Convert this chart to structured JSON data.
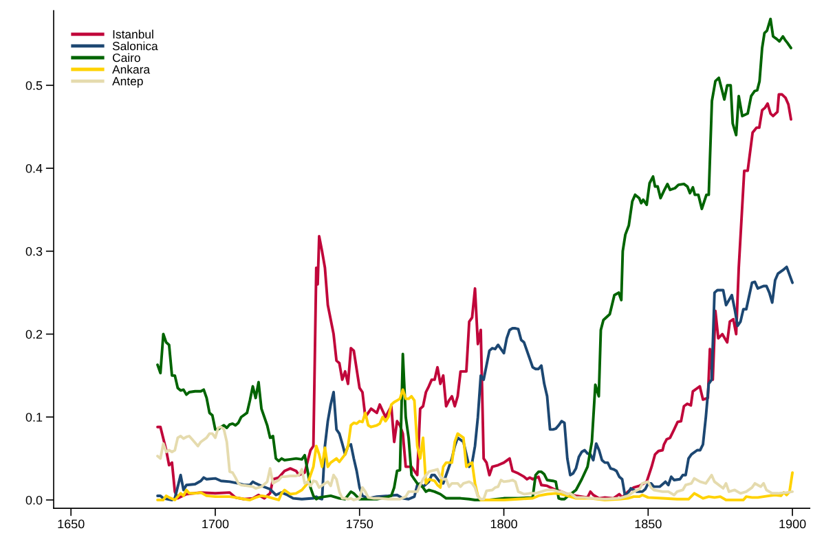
{
  "chart_data": {
    "type": "line",
    "xlim": [
      1644,
      1906
    ],
    "ylim": [
      -0.01,
      0.59
    ],
    "xticks": [
      1650,
      1700,
      1750,
      1800,
      1850,
      1900
    ],
    "yticks": [
      {
        "value": 0,
        "label": "0.0"
      },
      0.1,
      0.2,
      0.3,
      0.4,
      0.5
    ],
    "legend": "top left",
    "grid": false,
    "line_style": "solid",
    "marker": "none",
    "series": [
      {
        "name": "Istanbul",
        "color": "#c0063a",
        "x": [
          1680,
          1681,
          1683,
          1684,
          1685,
          1686,
          1687,
          1690,
          1695,
          1700,
          1705,
          1707,
          1710,
          1713,
          1715,
          1717,
          1719,
          1720,
          1722,
          1724,
          1726,
          1728,
          1729,
          1731,
          1733,
          1734,
          1735,
          1735.5,
          1736,
          1737,
          1738,
          1739,
          1741,
          1742,
          1743,
          1744,
          1745,
          1746,
          1747,
          1748,
          1750,
          1751,
          1752,
          1753,
          1754,
          1756,
          1757,
          1759,
          1761,
          1762,
          1763,
          1764,
          1765,
          1766,
          1768,
          1770,
          1771,
          1772,
          1773,
          1774,
          1775,
          1776,
          1777,
          1778,
          1779,
          1780,
          1781,
          1782,
          1783,
          1784,
          1785,
          1787,
          1788,
          1789,
          1790,
          1791,
          1792,
          1793,
          1794,
          1795,
          1796,
          1798,
          1800,
          1802,
          1803,
          1805,
          1807,
          1808,
          1809,
          1810,
          1812,
          1813,
          1815,
          1818,
          1820,
          1822,
          1825,
          1827,
          1829,
          1830,
          1831,
          1833,
          1835,
          1838,
          1840,
          1841,
          1843,
          1845,
          1847,
          1849.5,
          1851.2,
          1852.4,
          1853.6,
          1855,
          1855.5,
          1856.4,
          1857.6,
          1859,
          1860.2,
          1861.4,
          1862.4,
          1863.6,
          1864.8,
          1865.5,
          1867.9,
          1869,
          1870.7,
          1871.4,
          1872.4,
          1873.3,
          1874.3,
          1875.7,
          1877.4,
          1878.3,
          1879.5,
          1880.5,
          1881.4,
          1883.3,
          1884.5,
          1886.2,
          1887.6,
          1888.5,
          1889.5,
          1890.5,
          1891.4,
          1892.4,
          1893.3,
          1894.8,
          1895.3,
          1896.4,
          1897.6,
          1898.6,
          1899.5
        ],
        "values": [
          0.088,
          0.088,
          0.06,
          0.042,
          0.045,
          0.01,
          0.002,
          0.007,
          0.009,
          0.008,
          0.009,
          0.003,
          0.001,
          0.002,
          0.006,
          0.002,
          0.008,
          0.025,
          0.027,
          0.035,
          0.038,
          0.035,
          0.03,
          0.033,
          0.06,
          0.065,
          0.28,
          0.26,
          0.318,
          0.3,
          0.28,
          0.235,
          0.2,
          0.168,
          0.165,
          0.145,
          0.155,
          0.14,
          0.183,
          0.18,
          0.135,
          0.13,
          0.1,
          0.105,
          0.11,
          0.105,
          0.115,
          0.1,
          0.113,
          0.07,
          0.095,
          0.09,
          0.08,
          0.04,
          0.04,
          0.03,
          0.11,
          0.113,
          0.13,
          0.137,
          0.145,
          0.145,
          0.16,
          0.14,
          0.15,
          0.113,
          0.12,
          0.125,
          0.113,
          0.125,
          0.155,
          0.155,
          0.215,
          0.22,
          0.255,
          0.188,
          0.205,
          0.05,
          0.045,
          0.03,
          0.04,
          0.042,
          0.045,
          0.05,
          0.035,
          0.032,
          0.028,
          0.025,
          0.027,
          0.025,
          0.028,
          0.018,
          0.017,
          0.012,
          0.01,
          0.007,
          0.005,
          0.004,
          0.003,
          0.01,
          0.006,
          0.002,
          0.003,
          0.002,
          0.007,
          0.003,
          0.01,
          0.015,
          0.017,
          0.022,
          0.04,
          0.055,
          0.059,
          0.06,
          0.067,
          0.073,
          0.075,
          0.085,
          0.094,
          0.095,
          0.113,
          0.116,
          0.114,
          0.131,
          0.137,
          0.121,
          0.123,
          0.182,
          0.145,
          0.228,
          0.195,
          0.2,
          0.19,
          0.215,
          0.218,
          0.2,
          0.28,
          0.397,
          0.397,
          0.443,
          0.449,
          0.449,
          0.47,
          0.473,
          0.478,
          0.466,
          0.463,
          0.468,
          0.489,
          0.489,
          0.485,
          0.477,
          0.459
        ]
      },
      {
        "name": "Salonica",
        "color": "#1c4772",
        "x": [
          1680,
          1681,
          1682,
          1685,
          1686,
          1688,
          1689,
          1690,
          1693,
          1695,
          1696,
          1697,
          1700,
          1702,
          1705,
          1708,
          1710,
          1712,
          1713,
          1714,
          1716,
          1719,
          1721,
          1723,
          1725,
          1727,
          1730,
          1734,
          1735,
          1736,
          1737,
          1738,
          1739,
          1740,
          1741,
          1742,
          1743,
          1744,
          1745,
          1746,
          1747,
          1748,
          1749,
          1750,
          1751,
          1753,
          1756,
          1760,
          1763,
          1765,
          1767,
          1769,
          1770,
          1771,
          1772,
          1774,
          1775,
          1776,
          1778,
          1779,
          1780,
          1782,
          1783,
          1784,
          1786,
          1787,
          1788,
          1789,
          1790,
          1791,
          1792,
          1793,
          1795,
          1796,
          1797,
          1798,
          1800,
          1801,
          1802,
          1803,
          1804,
          1805,
          1806,
          1807,
          1808,
          1809,
          1810,
          1811,
          1812,
          1813,
          1814,
          1815,
          1816,
          1817,
          1818,
          1819,
          1820,
          1821,
          1822,
          1823,
          1824,
          1825,
          1826,
          1827,
          1828,
          1829,
          1830,
          1831,
          1832,
          1833,
          1834,
          1835,
          1836,
          1837,
          1838,
          1839,
          1840,
          1841,
          1842,
          1843,
          1844,
          1845,
          1846,
          1848,
          1849,
          1850,
          1851,
          1852,
          1854,
          1856,
          1857,
          1858,
          1859,
          1861,
          1862,
          1863,
          1864,
          1865,
          1867,
          1868,
          1869,
          1870,
          1871,
          1872,
          1873,
          1874,
          1876,
          1877,
          1879,
          1880,
          1881,
          1882,
          1883,
          1884,
          1886,
          1887,
          1888,
          1890,
          1891,
          1892,
          1893,
          1894,
          1895,
          1897,
          1898,
          1900
        ],
        "values": [
          0.005,
          0.005,
          0.002,
          0.0,
          0.002,
          0.03,
          0.012,
          0.018,
          0.019,
          0.023,
          0.027,
          0.025,
          0.026,
          0.023,
          0.022,
          0.02,
          0.018,
          0.018,
          0.022,
          0.02,
          0.017,
          0.013,
          0.006,
          0.009,
          0.006,
          0.002,
          0.001,
          0.002,
          0.004,
          0.002,
          0.001,
          0.065,
          0.095,
          0.115,
          0.13,
          0.085,
          0.08,
          0.068,
          0.055,
          0.065,
          0.067,
          0.05,
          0.035,
          0.015,
          0.005,
          0.002,
          0.004,
          0.005,
          0.006,
          0.002,
          0.001,
          0.004,
          0.018,
          0.02,
          0.016,
          0.022,
          0.03,
          0.03,
          0.021,
          0.02,
          0.03,
          0.05,
          0.065,
          0.075,
          0.07,
          0.055,
          0.04,
          0.045,
          0.065,
          0.1,
          0.15,
          0.145,
          0.18,
          0.183,
          0.182,
          0.187,
          0.177,
          0.195,
          0.205,
          0.207,
          0.207,
          0.206,
          0.193,
          0.19,
          0.18,
          0.17,
          0.16,
          0.158,
          0.158,
          0.162,
          0.14,
          0.125,
          0.085,
          0.085,
          0.086,
          0.09,
          0.095,
          0.093,
          0.05,
          0.03,
          0.032,
          0.038,
          0.052,
          0.058,
          0.06,
          0.056,
          0.055,
          0.048,
          0.068,
          0.06,
          0.048,
          0.045,
          0.045,
          0.038,
          0.037,
          0.035,
          0.028,
          0.025,
          0.005,
          0.008,
          0.014,
          0.012,
          0.01,
          0.01,
          0.013,
          0.02,
          0.02,
          0.016,
          0.016,
          0.022,
          0.018,
          0.028,
          0.024,
          0.025,
          0.03,
          0.03,
          0.05,
          0.055,
          0.06,
          0.06,
          0.067,
          0.1,
          0.14,
          0.145,
          0.25,
          0.253,
          0.253,
          0.235,
          0.247,
          0.23,
          0.21,
          0.215,
          0.23,
          0.23,
          0.262,
          0.263,
          0.255,
          0.258,
          0.258,
          0.25,
          0.238,
          0.265,
          0.273,
          0.278,
          0.281,
          0.262
        ]
      },
      {
        "name": "Cairo",
        "color": "#006400",
        "x": [
          1680,
          1681,
          1682,
          1683,
          1684,
          1685,
          1686,
          1687,
          1688,
          1689,
          1690,
          1691,
          1693,
          1695,
          1696,
          1697,
          1698,
          1699,
          1700,
          1701,
          1702,
          1703,
          1704,
          1705,
          1706,
          1707,
          1708,
          1709,
          1711,
          1712,
          1713,
          1714,
          1715,
          1716,
          1718,
          1719,
          1720,
          1721,
          1722,
          1723,
          1724,
          1726,
          1728,
          1730,
          1731,
          1732,
          1733,
          1734,
          1735,
          1736,
          1738,
          1740,
          1741,
          1743,
          1745,
          1747,
          1748,
          1750,
          1753,
          1756,
          1759,
          1761,
          1762,
          1763,
          1764,
          1765,
          1766,
          1767,
          1768,
          1769,
          1770,
          1771,
          1772,
          1773,
          1774,
          1776,
          1778,
          1780,
          1782,
          1785,
          1788,
          1790,
          1793,
          1795,
          1800,
          1805,
          1810,
          1811,
          1812,
          1813,
          1814,
          1815,
          1817,
          1818,
          1819,
          1820,
          1821,
          1822,
          1825,
          1827,
          1829,
          1830.5,
          1831.7,
          1832.9,
          1833.6,
          1834.5,
          1836.7,
          1838.3,
          1839.8,
          1840.7,
          1841.2,
          1842.1,
          1843.3,
          1844.5,
          1845.5,
          1846.9,
          1847.6,
          1848.3,
          1849.5,
          1850.5,
          1851.7,
          1852.4,
          1853.3,
          1854.3,
          1855.5,
          1856.7,
          1857.6,
          1859.3,
          1860.5,
          1862.4,
          1863.6,
          1864.5,
          1865.5,
          1866.2,
          1867.4,
          1868.6,
          1870.2,
          1871,
          1872.1,
          1873.3,
          1874.5,
          1876.4,
          1877.4,
          1878.6,
          1879.3,
          1880.5,
          1881.4,
          1882.6,
          1884.5,
          1885.7,
          1886.9,
          1887.8,
          1888.6,
          1889.5,
          1890.3,
          1891.2,
          1892.4,
          1893.3,
          1894.5,
          1895.5,
          1896.7,
          1897.4,
          1898.3,
          1899.5
        ],
        "values": [
          0.163,
          0.153,
          0.2,
          0.19,
          0.187,
          0.15,
          0.15,
          0.135,
          0.132,
          0.133,
          0.127,
          0.13,
          0.131,
          0.131,
          0.133,
          0.123,
          0.105,
          0.102,
          0.085,
          0.085,
          0.088,
          0.09,
          0.087,
          0.091,
          0.092,
          0.09,
          0.093,
          0.1,
          0.105,
          0.12,
          0.137,
          0.123,
          0.142,
          0.11,
          0.09,
          0.075,
          0.077,
          0.05,
          0.047,
          0.05,
          0.048,
          0.049,
          0.05,
          0.049,
          0.054,
          0.035,
          0.015,
          0.005,
          0.001,
          0.003,
          0.004,
          0.005,
          0.004,
          0.002,
          0.001,
          0.01,
          0.008,
          0.001,
          0.001,
          0.001,
          0.003,
          0.005,
          0.015,
          0.035,
          0.036,
          0.176,
          0.1,
          0.075,
          0.03,
          0.025,
          0.02,
          0.018,
          0.015,
          0.01,
          0.012,
          0.01,
          0.007,
          0.002,
          0.002,
          0.002,
          0.001,
          0.0,
          0.0,
          0.0,
          0.002,
          0.002,
          0.003,
          0.03,
          0.034,
          0.034,
          0.031,
          0.024,
          0.023,
          0.022,
          0.002,
          0.001,
          0.001,
          0.004,
          0.012,
          0.025,
          0.04,
          0.07,
          0.139,
          0.125,
          0.205,
          0.217,
          0.224,
          0.247,
          0.25,
          0.241,
          0.3,
          0.32,
          0.331,
          0.36,
          0.368,
          0.364,
          0.358,
          0.362,
          0.356,
          0.382,
          0.39,
          0.378,
          0.378,
          0.364,
          0.373,
          0.381,
          0.374,
          0.376,
          0.38,
          0.381,
          0.378,
          0.37,
          0.377,
          0.368,
          0.368,
          0.351,
          0.368,
          0.368,
          0.481,
          0.505,
          0.509,
          0.483,
          0.5,
          0.5,
          0.454,
          0.44,
          0.487,
          0.463,
          0.466,
          0.487,
          0.493,
          0.494,
          0.505,
          0.545,
          0.563,
          0.566,
          0.58,
          0.559,
          0.556,
          0.553,
          0.559,
          0.555,
          0.551,
          0.545
        ]
      },
      {
        "name": "Ankara",
        "color": "#ffd200",
        "x": [
          1680,
          1682,
          1683,
          1684,
          1686,
          1688,
          1689,
          1690,
          1691,
          1693,
          1695,
          1697,
          1700,
          1705,
          1707,
          1710,
          1712,
          1714,
          1716,
          1718,
          1720,
          1722,
          1723,
          1724,
          1726,
          1728,
          1730,
          1732,
          1733,
          1734,
          1735,
          1736,
          1737,
          1738,
          1739,
          1740,
          1742,
          1743,
          1745,
          1746,
          1747,
          1748,
          1749,
          1750,
          1751,
          1752,
          1753,
          1754,
          1756,
          1757,
          1758,
          1759,
          1760,
          1761,
          1762,
          1763,
          1764,
          1765,
          1766,
          1767,
          1768,
          1769,
          1770,
          1771,
          1772,
          1773,
          1774,
          1776,
          1777,
          1778,
          1779,
          1780,
          1782,
          1783,
          1784,
          1786,
          1787,
          1788,
          1789,
          1790,
          1791,
          1792,
          1795,
          1800,
          1805,
          1810,
          1812,
          1815,
          1818,
          1820,
          1822,
          1825,
          1830,
          1835,
          1840,
          1843,
          1845,
          1847,
          1848,
          1850,
          1855,
          1860,
          1864,
          1866,
          1867,
          1869,
          1871,
          1873,
          1875,
          1877,
          1880,
          1883,
          1884,
          1886,
          1888,
          1890,
          1892,
          1894,
          1896,
          1897,
          1898,
          1899,
          1900
        ],
        "values": [
          0.0,
          0.0,
          0.005,
          0.003,
          0.0,
          0.008,
          0.005,
          0.012,
          0.008,
          0.008,
          0.009,
          0.005,
          0.004,
          0.004,
          0.003,
          0.001,
          0.0,
          0.003,
          0.005,
          0.004,
          0.002,
          0.0,
          0.008,
          0.012,
          0.007,
          0.008,
          0.012,
          0.02,
          0.03,
          0.04,
          0.065,
          0.055,
          0.04,
          0.063,
          0.04,
          0.045,
          0.05,
          0.046,
          0.055,
          0.065,
          0.09,
          0.093,
          0.092,
          0.095,
          0.094,
          0.105,
          0.09,
          0.088,
          0.09,
          0.092,
          0.1,
          0.095,
          0.1,
          0.115,
          0.118,
          0.12,
          0.122,
          0.133,
          0.122,
          0.122,
          0.125,
          0.12,
          0.065,
          0.05,
          0.075,
          0.02,
          0.025,
          0.023,
          0.018,
          0.015,
          0.04,
          0.045,
          0.045,
          0.07,
          0.08,
          0.075,
          0.04,
          0.043,
          0.045,
          0.02,
          0.005,
          0.0,
          0.0,
          0.0,
          0.001,
          0.002,
          0.005,
          0.007,
          0.008,
          0.007,
          0.005,
          0.002,
          0.002,
          0.0,
          0.001,
          0.002,
          0.004,
          0.004,
          0.006,
          0.003,
          0.002,
          0.001,
          0.001,
          0.008,
          0.006,
          0.002,
          0.004,
          0.003,
          0.004,
          0.0,
          0.0,
          0.0,
          0.004,
          0.003,
          0.003,
          0.004,
          0.005,
          0.006,
          0.005,
          0.009,
          0.006,
          0.01,
          0.033
        ]
      },
      {
        "name": "Antep",
        "color": "#e5dbae",
        "x": [
          1680,
          1681,
          1682,
          1683,
          1684,
          1685,
          1686,
          1687,
          1688,
          1689,
          1690,
          1691,
          1692,
          1694,
          1695,
          1697,
          1698,
          1699,
          1700,
          1701,
          1702,
          1703,
          1704,
          1705,
          1706,
          1707,
          1708,
          1709,
          1711,
          1713,
          1714,
          1716,
          1718,
          1719,
          1720,
          1721,
          1722,
          1723,
          1724,
          1726,
          1728,
          1729,
          1730,
          1731,
          1732,
          1733,
          1734,
          1735,
          1736,
          1738,
          1739,
          1740,
          1741,
          1742,
          1743,
          1744,
          1745,
          1746,
          1747,
          1748,
          1750,
          1751,
          1752,
          1753,
          1755,
          1757,
          1760,
          1762,
          1764,
          1766,
          1767,
          1768,
          1770,
          1771,
          1772,
          1774,
          1775,
          1776,
          1777,
          1778,
          1779,
          1780,
          1781,
          1782,
          1784,
          1785,
          1786,
          1788,
          1789,
          1790,
          1791,
          1792,
          1793,
          1794,
          1796,
          1797,
          1798,
          1799,
          1800,
          1802,
          1803,
          1804,
          1805,
          1807,
          1809,
          1811,
          1813,
          1815,
          1817,
          1819,
          1820,
          1822,
          1823,
          1825,
          1828,
          1830,
          1835,
          1840,
          1843,
          1845,
          1847,
          1848,
          1850,
          1851,
          1852,
          1855,
          1857,
          1859,
          1860,
          1862,
          1863,
          1865,
          1866,
          1868,
          1870,
          1872,
          1873,
          1876,
          1877,
          1878,
          1880,
          1882,
          1884,
          1886,
          1887,
          1888,
          1889,
          1890,
          1891,
          1893,
          1895,
          1898,
          1900
        ],
        "values": [
          0.053,
          0.05,
          0.068,
          0.058,
          0.06,
          0.058,
          0.06,
          0.075,
          0.077,
          0.074,
          0.076,
          0.077,
          0.073,
          0.065,
          0.07,
          0.075,
          0.08,
          0.08,
          0.075,
          0.087,
          0.088,
          0.085,
          0.07,
          0.034,
          0.033,
          0.027,
          0.02,
          0.018,
          0.017,
          0.016,
          0.014,
          0.016,
          0.022,
          0.038,
          0.02,
          0.022,
          0.024,
          0.028,
          0.028,
          0.029,
          0.029,
          0.03,
          0.037,
          0.02,
          0.022,
          0.017,
          0.023,
          0.022,
          0.015,
          0.02,
          0.022,
          0.017,
          0.03,
          0.025,
          0.01,
          0.002,
          0.002,
          0.001,
          0.002,
          0.0,
          0.002,
          0.015,
          0.01,
          0.003,
          0.002,
          0.002,
          0.001,
          0.001,
          0.001,
          0.004,
          0.01,
          0.01,
          0.01,
          0.018,
          0.025,
          0.034,
          0.035,
          0.036,
          0.037,
          0.028,
          0.025,
          0.025,
          0.016,
          0.02,
          0.02,
          0.016,
          0.02,
          0.022,
          0.02,
          0.015,
          0.004,
          0.001,
          0.001,
          0.011,
          0.012,
          0.015,
          0.016,
          0.024,
          0.022,
          0.023,
          0.024,
          0.022,
          0.01,
          0.007,
          0.008,
          0.008,
          0.01,
          0.012,
          0.012,
          0.01,
          0.01,
          0.007,
          0.008,
          0.003,
          0.003,
          0.002,
          0.001,
          0.002,
          0.005,
          0.01,
          0.013,
          0.02,
          0.022,
          0.015,
          0.012,
          0.01,
          0.01,
          0.006,
          0.01,
          0.012,
          0.018,
          0.02,
          0.026,
          0.022,
          0.02,
          0.03,
          0.022,
          0.014,
          0.02,
          0.01,
          0.012,
          0.008,
          0.01,
          0.015,
          0.02,
          0.018,
          0.016,
          0.02,
          0.012,
          0.008,
          0.008,
          0.009,
          0.01
        ]
      }
    ]
  }
}
